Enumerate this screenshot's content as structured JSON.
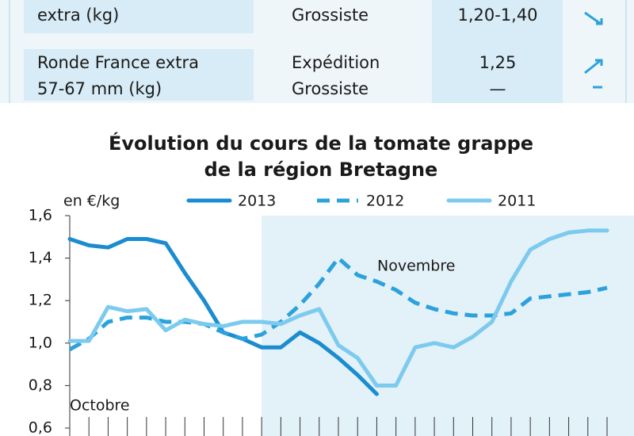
{
  "table": {
    "rows": [
      [
        [
          "extra (kg)"
        ],
        [
          "Grossiste"
        ],
        [
          "1,20-1,40"
        ]
      ],
      [
        [
          "Ronde France extra",
          "57-67 mm (kg)"
        ],
        [
          "Expédition",
          "Grossiste"
        ],
        [
          "1,25",
          "—"
        ]
      ]
    ]
  },
  "chart_data": {
    "type": "line",
    "title": [
      "Évolution du cours de la tomate grappe",
      "de la région Bretagne"
    ],
    "y_label": "en €/kg",
    "annotations": [
      "Octobre",
      "Novembre"
    ],
    "categories": [
      null,
      null,
      null,
      null,
      null,
      null,
      null,
      null,
      null,
      null,
      null,
      null,
      null,
      null,
      null,
      null,
      null,
      null,
      null,
      null,
      null,
      null,
      null,
      null,
      null,
      null,
      null,
      null,
      null
    ],
    "series": [
      {
        "name": "2013",
        "color": "#1a8cd0",
        "dash": false,
        "values": [
          1.49,
          1.46,
          1.45,
          1.49,
          1.49,
          1.47,
          1.33,
          1.2,
          1.05,
          1.02,
          0.98,
          0.98,
          1.05,
          1.0,
          0.93,
          0.85,
          0.76,
          null,
          null,
          null,
          null,
          null,
          null,
          null,
          null,
          null,
          null,
          null,
          null
        ]
      },
      {
        "name": "2012",
        "color": "#2ba2dc",
        "dash": true,
        "values": [
          0.97,
          1.02,
          1.1,
          1.12,
          1.12,
          1.1,
          1.1,
          1.09,
          1.05,
          1.02,
          1.04,
          1.1,
          1.18,
          1.28,
          1.4,
          1.32,
          1.29,
          1.25,
          1.19,
          1.16,
          1.14,
          1.13,
          1.13,
          1.14,
          1.21,
          1.22,
          1.23,
          1.24,
          1.26
        ]
      },
      {
        "name": "2011",
        "color": "#7ccaee",
        "dash": false,
        "values": [
          1.01,
          1.01,
          1.17,
          1.15,
          1.16,
          1.06,
          1.11,
          1.09,
          1.08,
          1.1,
          1.1,
          1.09,
          1.13,
          1.16,
          0.99,
          0.93,
          0.8,
          0.8,
          0.98,
          1.0,
          0.98,
          1.03,
          1.1,
          1.29,
          1.44,
          1.49,
          1.52,
          1.53,
          1.53
        ]
      }
    ],
    "ylim": [
      0.6,
      1.6
    ],
    "yticks": [
      {
        "value": 0.6,
        "label": "0,6"
      },
      {
        "value": 0.8,
        "label": "0,8"
      },
      {
        "value": 1.0,
        "label": "1,0"
      },
      {
        "value": 1.2,
        "label": "1,2"
      },
      {
        "value": 1.4,
        "label": "1,4"
      },
      {
        "value": 1.6,
        "label": "1,6"
      }
    ],
    "grid": false
  }
}
